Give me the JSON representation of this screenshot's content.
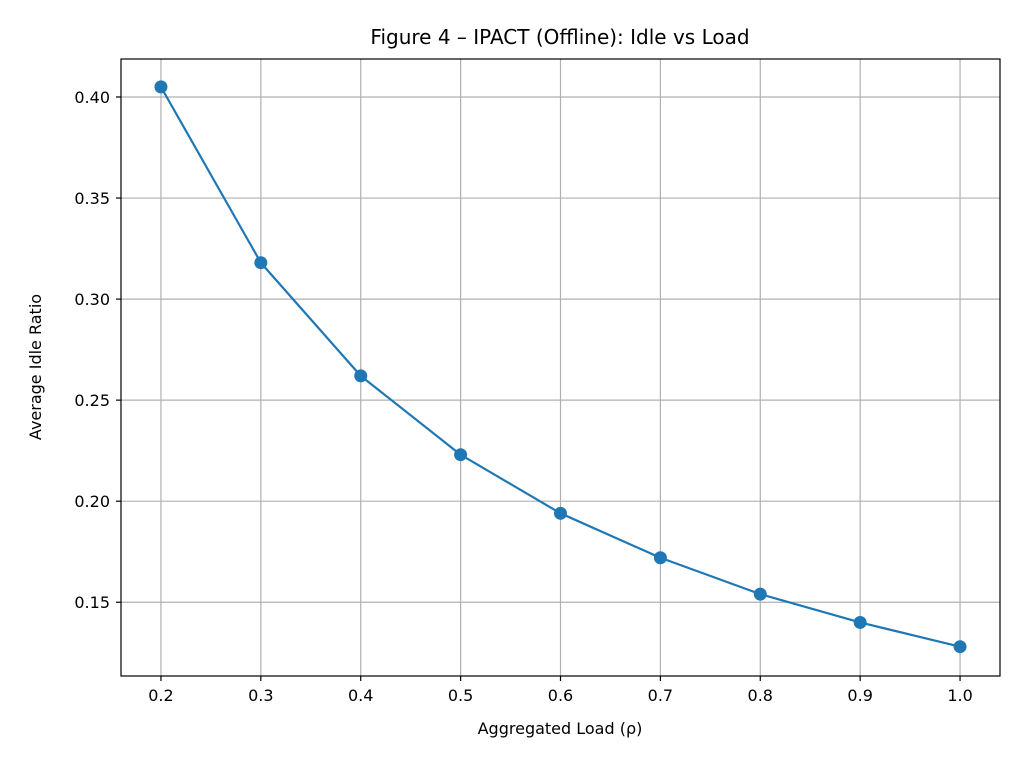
{
  "chart_data": {
    "type": "line",
    "title": "Figure 4 – IPACT (Offline): Idle vs Load",
    "xlabel": "Aggregated Load (ρ)",
    "ylabel": "Average Idle Ratio",
    "x": [
      0.2,
      0.3,
      0.4,
      0.5,
      0.6,
      0.7,
      0.8,
      0.9,
      1.0
    ],
    "x_tick_labels": [
      "0.2",
      "0.3",
      "0.4",
      "0.5",
      "0.6",
      "0.7",
      "0.8",
      "0.9",
      "1.0"
    ],
    "y_ticks": [
      0.15,
      0.2,
      0.25,
      0.3,
      0.35,
      0.4
    ],
    "y_tick_labels": [
      "0.15",
      "0.20",
      "0.25",
      "0.30",
      "0.35",
      "0.40"
    ],
    "xlim": [
      0.16,
      1.04
    ],
    "ylim": [
      0.1135,
      0.4188
    ],
    "grid": true,
    "series": [
      {
        "values": [
          0.405,
          0.318,
          0.262,
          0.223,
          0.194,
          0.172,
          0.154,
          0.14,
          0.128
        ],
        "color": "#1f77b4",
        "marker": "circle"
      }
    ]
  }
}
